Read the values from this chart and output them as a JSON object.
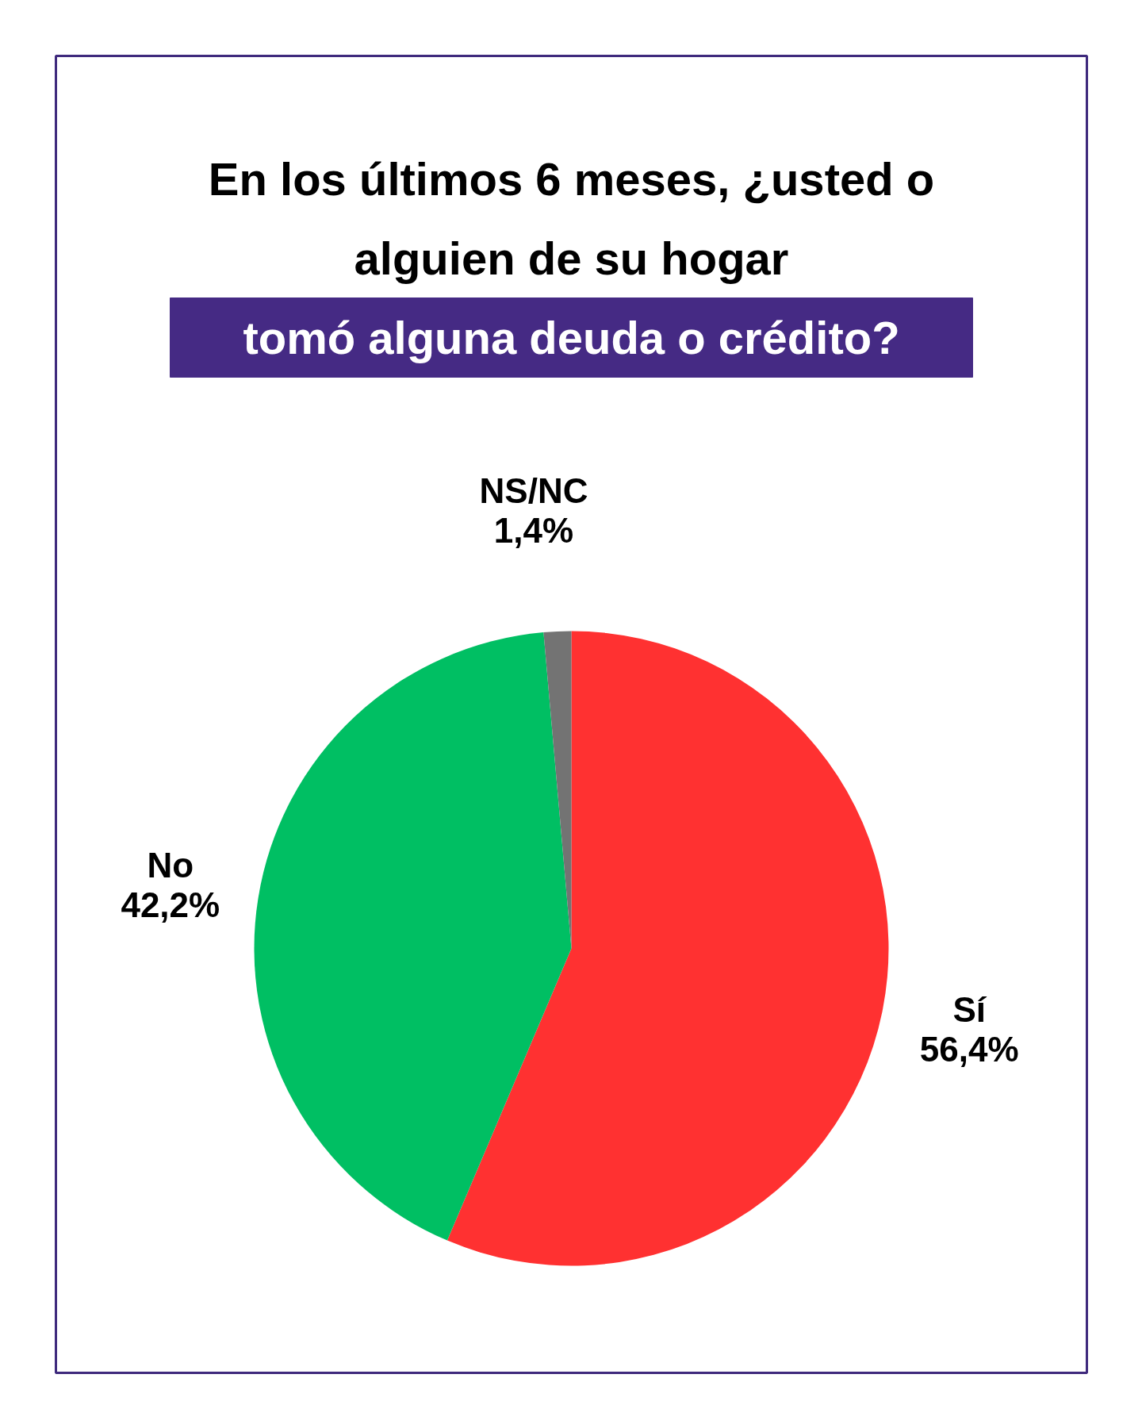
{
  "chart_data": {
    "type": "pie",
    "title": "En los últimos 6 meses, ¿usted o alguien de su hogar",
    "subtitle": "tomó alguna deuda o crédito?",
    "categories": [
      "Sí",
      "No",
      "NS/NC"
    ],
    "values": [
      56.4,
      42.2,
      1.4
    ],
    "colors": [
      "#ff3131",
      "#00bf63",
      "#737373"
    ],
    "value_labels": [
      "56,4%",
      "42,2%",
      "1,4%"
    ]
  }
}
